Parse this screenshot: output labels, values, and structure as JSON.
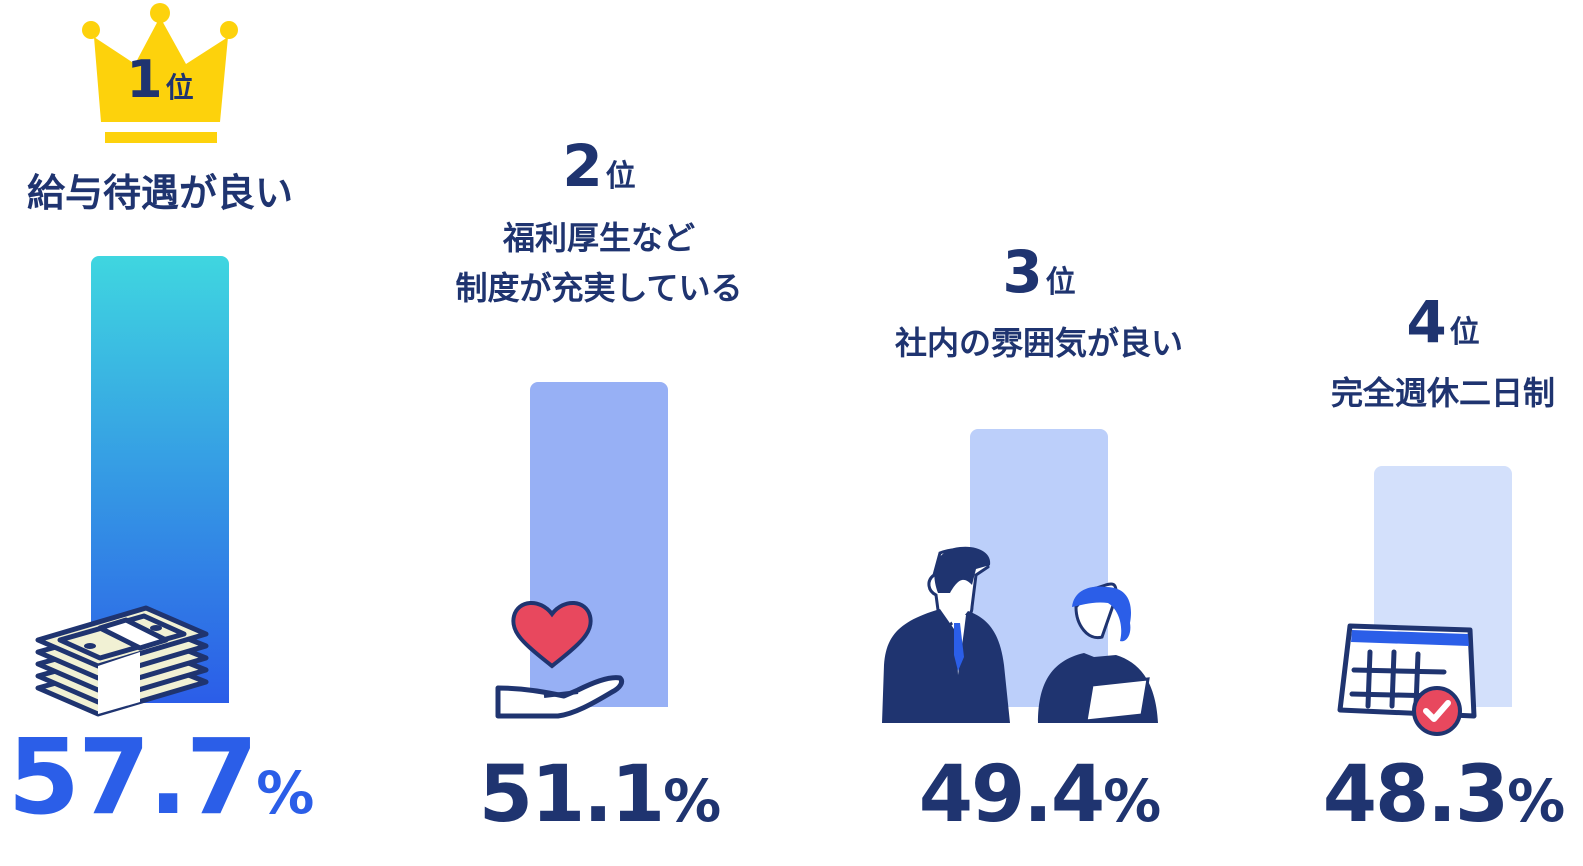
{
  "chart_data": {
    "type": "bar",
    "categories": [
      "給与待遇が良い",
      "福利厚生など\n制度が充実している",
      "社内の雰囲気が良い",
      "完全週休二日制"
    ],
    "values": [
      57.7,
      51.1,
      49.4,
      48.3
    ],
    "unit": "%",
    "ranks": [
      {
        "num": "1",
        "suffix": "位"
      },
      {
        "num": "2",
        "suffix": "位"
      },
      {
        "num": "3",
        "suffix": "位"
      },
      {
        "num": "4",
        "suffix": "位"
      }
    ],
    "labels": [
      [
        "給与待遇が良い"
      ],
      [
        "福利厚生など",
        "制度が充実している"
      ],
      [
        "社内の雰囲気が良い"
      ],
      [
        "完全週休二日制"
      ]
    ],
    "value_labels": [
      "57.7",
      "51.1",
      "49.4",
      "48.3"
    ],
    "icons": [
      "money-stack-icon",
      "heart-in-hand-icon",
      "coworkers-icon",
      "calendar-check-icon"
    ],
    "colors": {
      "bar1_gradient": [
        "#3fd6e0",
        "#2b5de8"
      ],
      "bar2": "#97b0f5",
      "bar3": "#bccffa",
      "bar4": "#d3e0fb",
      "crown": "#fdd20c",
      "navy": "#1f3470",
      "accent": "#2b5ee8"
    },
    "grid": false,
    "legend": "none"
  }
}
